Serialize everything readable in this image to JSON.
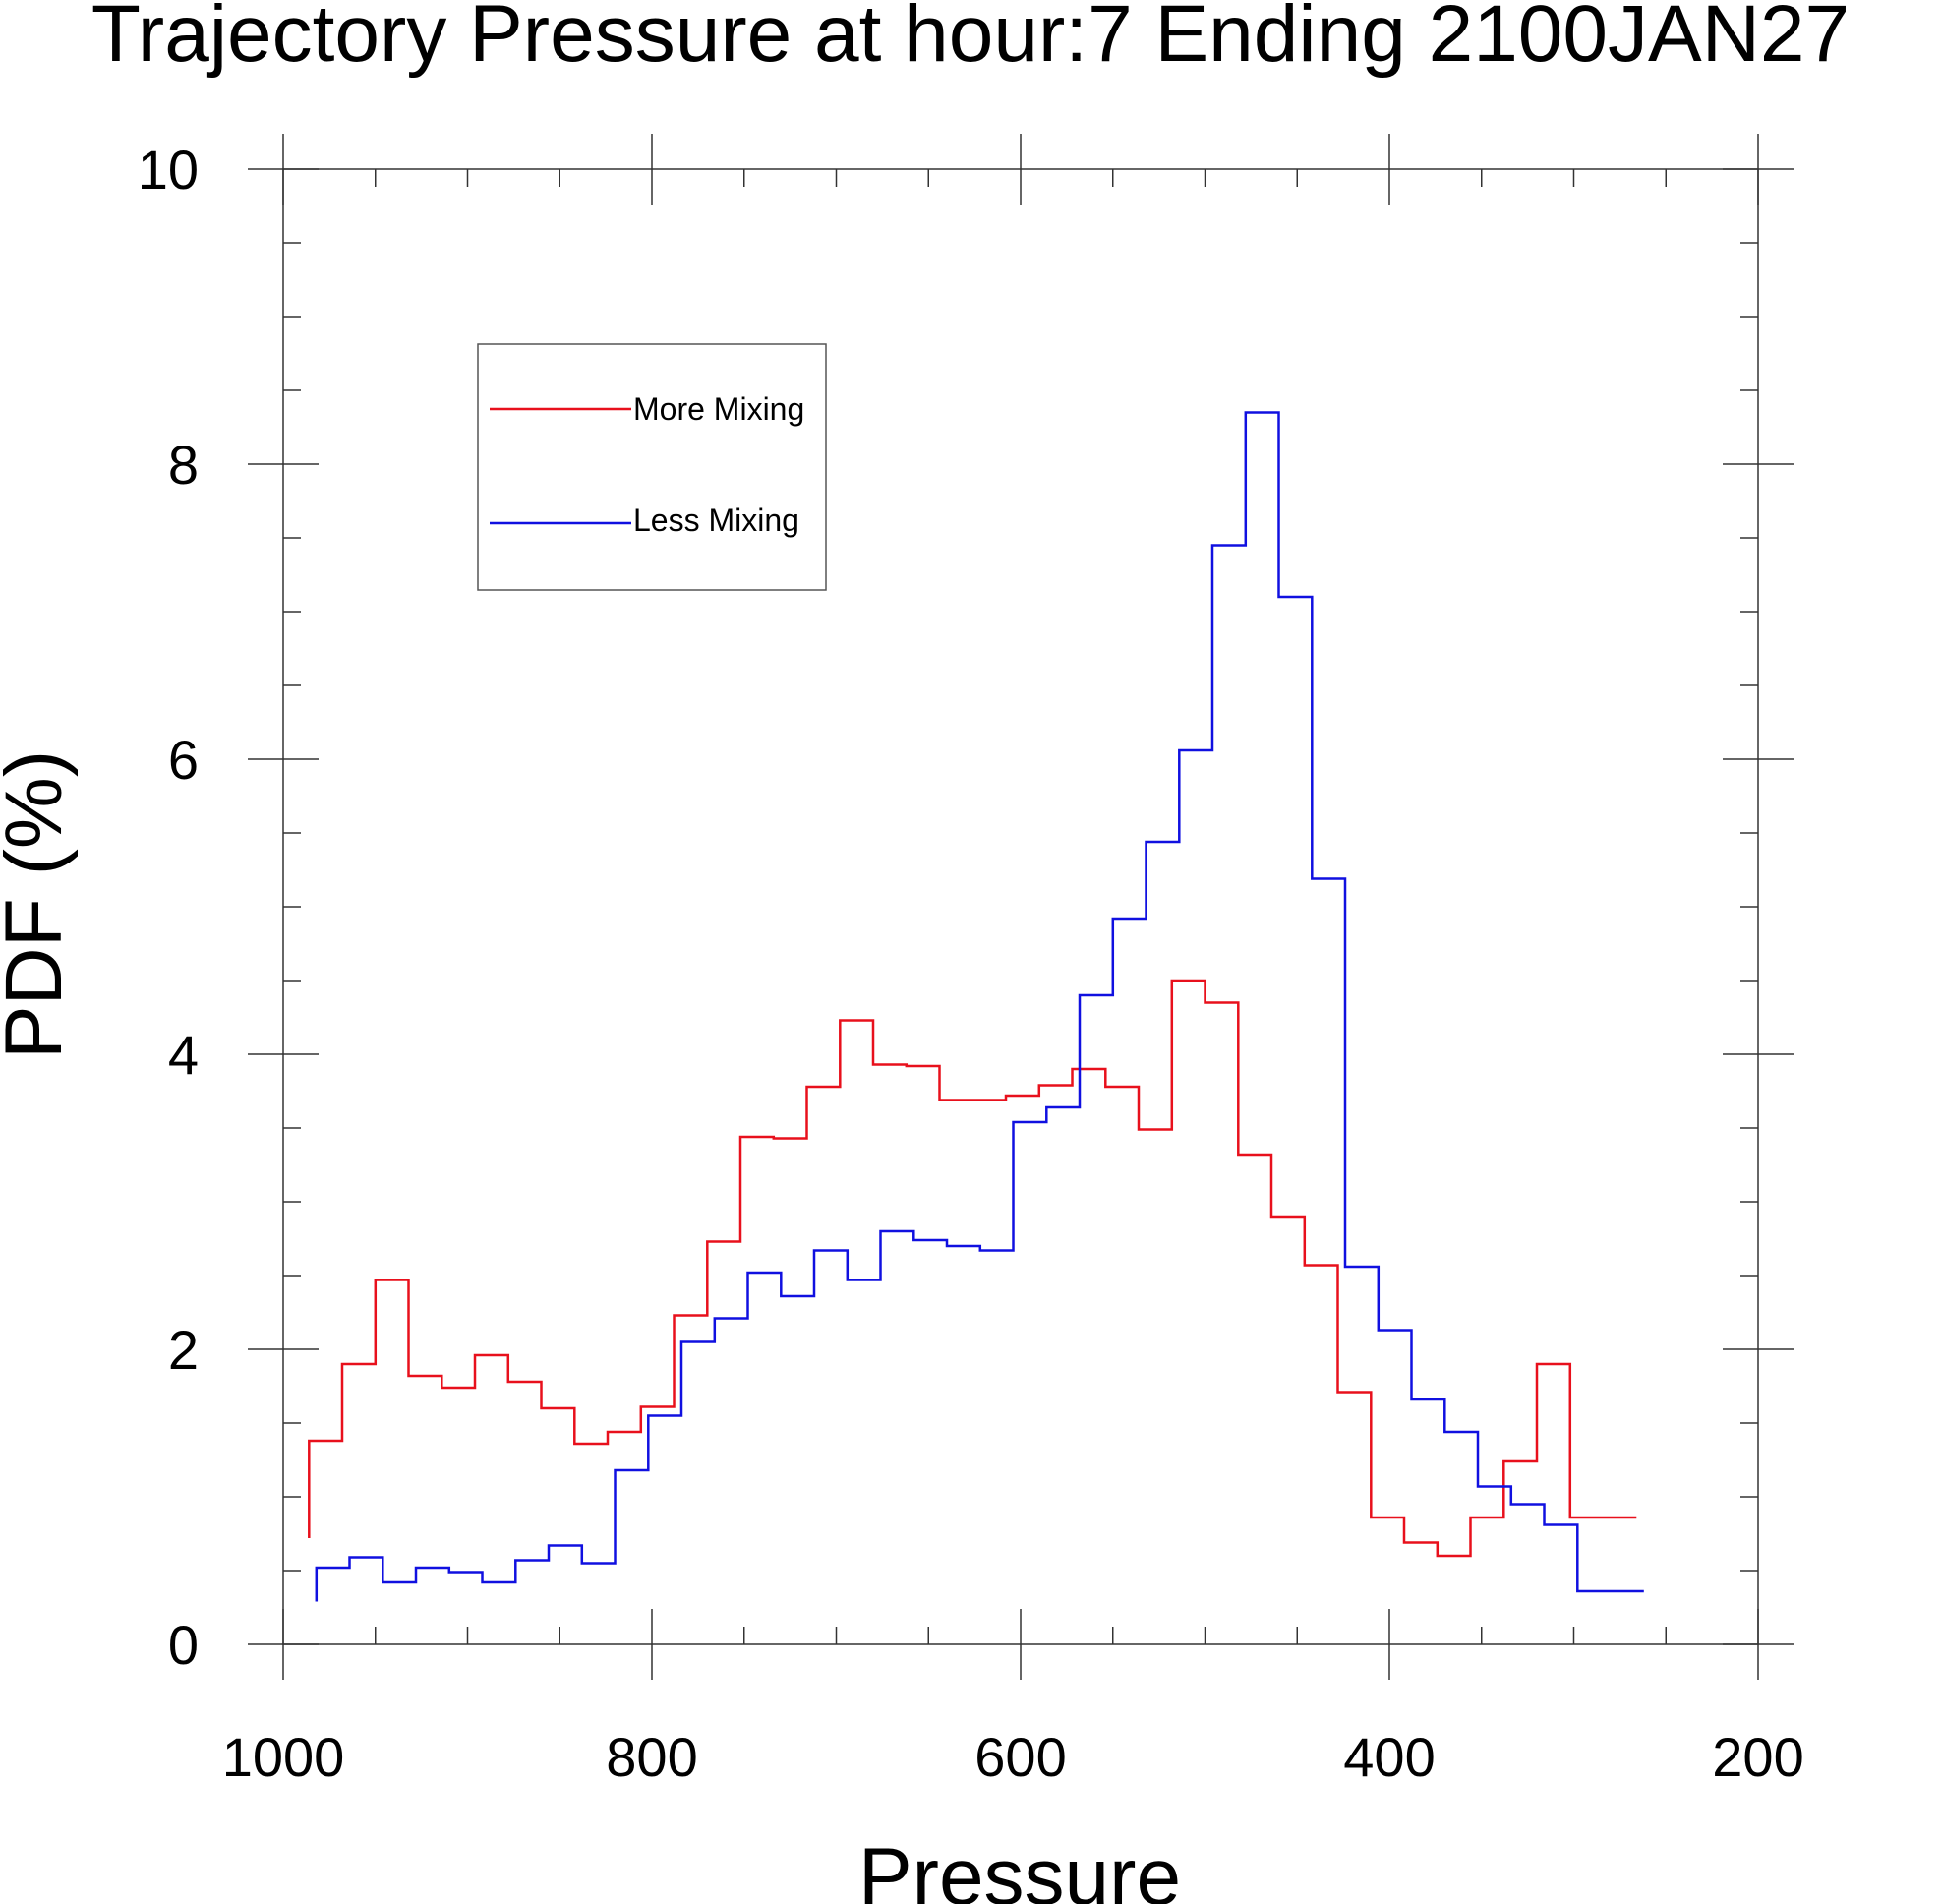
{
  "chart_data": {
    "type": "line",
    "title": "Trajectory Pressure at hour:7 Ending 2100JAN27",
    "xlabel": "Pressure",
    "ylabel": "PDF (%)",
    "x_reversed": true,
    "xlim": [
      1000,
      200
    ],
    "ylim": [
      0,
      10
    ],
    "xticks": [
      1000,
      800,
      600,
      400,
      200
    ],
    "yticks": [
      0,
      2,
      4,
      6,
      8,
      10
    ],
    "grid": false,
    "legend": "upper-left",
    "series": [
      {
        "name": "More Mixing",
        "color": "#e8101c",
        "edges": [
          986,
          968,
          950,
          932,
          914,
          896,
          878,
          860,
          842,
          824,
          806,
          788,
          770,
          752,
          734,
          716,
          698,
          680,
          662,
          644,
          626,
          608,
          590,
          572,
          554,
          536,
          518,
          500,
          482,
          464,
          446,
          428,
          410,
          392,
          374,
          356,
          338,
          320,
          302,
          284,
          266
        ],
        "values": [
          1.38,
          1.9,
          2.47,
          1.82,
          1.74,
          1.96,
          1.78,
          1.6,
          1.36,
          1.44,
          1.61,
          2.23,
          2.73,
          3.44,
          3.43,
          3.78,
          4.23,
          3.93,
          3.92,
          3.69,
          3.69,
          3.72,
          3.79,
          3.9,
          3.78,
          3.49,
          4.5,
          4.35,
          3.32,
          2.9,
          2.57,
          1.71,
          0.86,
          0.69,
          0.6,
          0.86,
          1.24,
          1.9,
          0.86,
          0.86
        ],
        "start_value": 0.72
      },
      {
        "name": "Less Mixing",
        "color": "#1010e0",
        "edges": [
          982,
          964,
          946,
          928,
          910,
          892,
          874,
          856,
          838,
          820,
          802,
          784,
          766,
          748,
          730,
          712,
          694,
          676,
          658,
          640,
          622,
          604,
          586,
          568,
          550,
          532,
          514,
          496,
          478,
          460,
          442,
          424,
          406,
          388,
          370,
          352,
          334,
          316,
          298,
          280,
          262
        ],
        "values": [
          0.52,
          0.59,
          0.42,
          0.52,
          0.49,
          0.42,
          0.57,
          0.67,
          0.55,
          1.18,
          1.55,
          2.05,
          2.21,
          2.52,
          2.36,
          2.67,
          2.47,
          2.8,
          2.74,
          2.7,
          2.67,
          3.54,
          3.64,
          4.4,
          4.92,
          5.44,
          6.06,
          7.45,
          8.35,
          7.1,
          5.19,
          2.56,
          2.13,
          1.66,
          1.44,
          1.07,
          0.95,
          0.81,
          0.36,
          0.36
        ],
        "start_value": 0.29
      }
    ]
  }
}
